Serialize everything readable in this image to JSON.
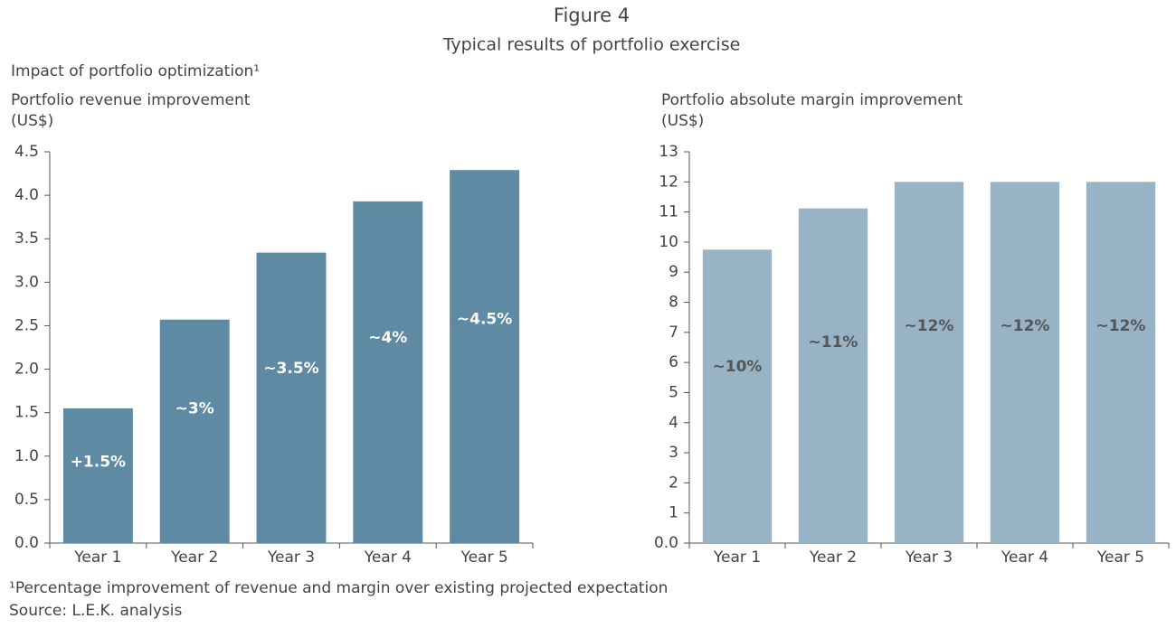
{
  "title": "Figure 4",
  "subtitle": "Typical results of portfolio exercise",
  "heading": "Impact of portfolio optimization¹",
  "footnote": "¹Percentage improvement of revenue and margin over existing projected expectation",
  "source": "Source: L.E.K. analysis",
  "chart_data": [
    {
      "type": "bar",
      "title": "Portfolio revenue improvement",
      "y_label": "(US$)",
      "categories": [
        "Year 1",
        "Year 2",
        "Year 3",
        "Year 4",
        "Year 5"
      ],
      "values": [
        1.55,
        2.57,
        3.34,
        3.93,
        4.29
      ],
      "bar_labels": [
        "+1.5%",
        "~3%",
        "~3.5%",
        "~4%",
        "~4.5%"
      ],
      "color": "#5e8aa4",
      "label_color": "#ffffff",
      "ylim": [
        0,
        4.5
      ],
      "yticks": [
        {
          "value": 0,
          "label": "0.0"
        },
        0.5,
        {
          "value": 1,
          "label": "1.0"
        },
        1.5,
        {
          "value": 2,
          "label": "2.0"
        },
        2.5,
        {
          "value": 3,
          "label": "3.0"
        },
        3.5,
        {
          "value": 4,
          "label": "4.0"
        },
        4.5
      ]
    },
    {
      "type": "bar",
      "title": "Portfolio absolute margin improvement",
      "y_label": "(US$)",
      "categories": [
        "Year 1",
        "Year 2",
        "Year 3",
        "Year 4",
        "Year 5"
      ],
      "values": [
        9.75,
        11.12,
        12,
        12,
        12
      ],
      "bar_labels": [
        "~10%",
        "~11%",
        "~12%",
        "~12%",
        "~12%"
      ],
      "color": "#98b3c6",
      "label_color": "#555555",
      "ylim": [
        0,
        13
      ],
      "yticks": [
        {
          "value": 0,
          "label": "0.0"
        },
        1,
        2,
        3,
        4,
        5,
        6,
        7,
        8,
        9,
        10,
        11,
        12,
        13
      ]
    }
  ]
}
